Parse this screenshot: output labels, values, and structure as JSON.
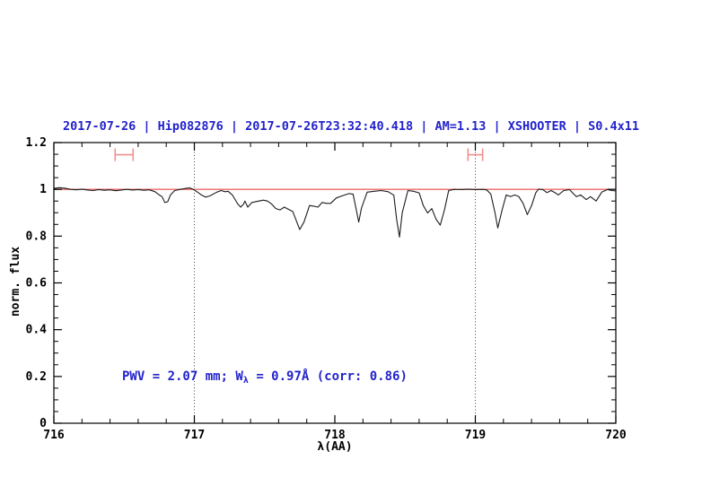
{
  "figure": {
    "background": "#ffffff"
  },
  "chart_data": {
    "type": "line",
    "title": "2017-07-26 | Hip082876 | 2017-07-26T23:32:40.418 | AM=1.13 | XSHOOTER | S0.4x11",
    "title_color": "#2222cc",
    "xlabel": "λ(AA)",
    "ylabel": "norm. flux",
    "xlim": [
      716,
      720
    ],
    "ylim": [
      0,
      1.2
    ],
    "grid": "off",
    "legend": "none",
    "x_ticks": [
      {
        "v": 716,
        "label": "716"
      },
      {
        "v": 717,
        "label": "717"
      },
      {
        "v": 718,
        "label": "718"
      },
      {
        "v": 719,
        "label": "719"
      },
      {
        "v": 720,
        "label": "720"
      }
    ],
    "x_minor_step": 0.2,
    "y_ticks": [
      {
        "v": 0,
        "label": "0"
      },
      {
        "v": 0.2,
        "label": "0.2"
      },
      {
        "v": 0.4,
        "label": "0.4"
      },
      {
        "v": 0.6,
        "label": "0.6"
      },
      {
        "v": 0.8,
        "label": "0.8"
      },
      {
        "v": 1,
        "label": "1"
      },
      {
        "v": 1.2,
        "label": "1.2"
      }
    ],
    "y_minor_step": 0.05,
    "dotted_guides_x": [
      717,
      719
    ],
    "continuum_line": {
      "y": 1.0,
      "color": "#ee6666"
    },
    "range_markers": [
      {
        "x_center": 716.5,
        "x_half_width": 0.064,
        "y": 1.148,
        "cap_half_height": 0.027,
        "color": "#f09090"
      },
      {
        "x_center": 719.0,
        "x_half_width": 0.052,
        "y": 1.148,
        "cap_half_height": 0.027,
        "color": "#f09090"
      }
    ],
    "annotation": {
      "pre": "PWV = 2.07 mm; W",
      "sub": "λ",
      "post": " = 0.97Å (corr: 0.86)",
      "color": "#2222cc"
    },
    "series": [
      {
        "name": "normalized telluric spectrum",
        "color": "#1c1c1c",
        "points": [
          [
            716.0,
            1.004
          ],
          [
            716.04,
            1.007
          ],
          [
            716.08,
            1.005
          ],
          [
            716.12,
            1.0
          ],
          [
            716.16,
            0.998
          ],
          [
            716.2,
            1.001
          ],
          [
            716.24,
            0.997
          ],
          [
            716.28,
            0.995
          ],
          [
            716.32,
            0.999
          ],
          [
            716.36,
            0.996
          ],
          [
            716.4,
            0.998
          ],
          [
            716.44,
            0.994
          ],
          [
            716.48,
            0.997
          ],
          [
            716.52,
            1.0
          ],
          [
            716.56,
            0.997
          ],
          [
            716.6,
            0.999
          ],
          [
            716.64,
            0.996
          ],
          [
            716.68,
            0.998
          ],
          [
            716.72,
            0.99
          ],
          [
            716.75,
            0.976
          ],
          [
            716.77,
            0.969
          ],
          [
            716.79,
            0.944
          ],
          [
            716.81,
            0.947
          ],
          [
            716.83,
            0.976
          ],
          [
            716.86,
            0.995
          ],
          [
            716.9,
            1.0
          ],
          [
            716.94,
            1.004
          ],
          [
            716.97,
            1.006
          ],
          [
            717.0,
            0.997
          ],
          [
            717.03,
            0.985
          ],
          [
            717.05,
            0.976
          ],
          [
            717.08,
            0.967
          ],
          [
            717.11,
            0.972
          ],
          [
            717.16,
            0.988
          ],
          [
            717.19,
            0.995
          ],
          [
            717.22,
            0.99
          ],
          [
            717.24,
            0.992
          ],
          [
            717.27,
            0.976
          ],
          [
            717.31,
            0.937
          ],
          [
            717.33,
            0.924
          ],
          [
            717.35,
            0.937
          ],
          [
            717.36,
            0.95
          ],
          [
            717.38,
            0.924
          ],
          [
            717.41,
            0.944
          ],
          [
            717.46,
            0.95
          ],
          [
            717.49,
            0.954
          ],
          [
            717.52,
            0.95
          ],
          [
            717.55,
            0.937
          ],
          [
            717.58,
            0.918
          ],
          [
            717.61,
            0.912
          ],
          [
            717.64,
            0.924
          ],
          [
            717.66,
            0.918
          ],
          [
            717.7,
            0.905
          ],
          [
            717.73,
            0.86
          ],
          [
            717.75,
            0.828
          ],
          [
            717.78,
            0.86
          ],
          [
            717.82,
            0.931
          ],
          [
            717.85,
            0.928
          ],
          [
            717.88,
            0.924
          ],
          [
            717.91,
            0.944
          ],
          [
            717.94,
            0.94
          ],
          [
            717.97,
            0.94
          ],
          [
            718.01,
            0.963
          ],
          [
            718.05,
            0.972
          ],
          [
            718.1,
            0.982
          ],
          [
            718.13,
            0.98
          ],
          [
            718.15,
            0.92
          ],
          [
            718.17,
            0.86
          ],
          [
            718.19,
            0.92
          ],
          [
            718.23,
            0.988
          ],
          [
            718.28,
            0.992
          ],
          [
            718.33,
            0.995
          ],
          [
            718.38,
            0.99
          ],
          [
            718.42,
            0.975
          ],
          [
            718.44,
            0.87
          ],
          [
            718.46,
            0.796
          ],
          [
            718.48,
            0.9
          ],
          [
            718.52,
            0.995
          ],
          [
            718.56,
            0.992
          ],
          [
            718.6,
            0.985
          ],
          [
            718.63,
            0.93
          ],
          [
            718.66,
            0.899
          ],
          [
            718.69,
            0.918
          ],
          [
            718.72,
            0.873
          ],
          [
            718.75,
            0.847
          ],
          [
            718.78,
            0.912
          ],
          [
            718.81,
            0.995
          ],
          [
            718.85,
            1.0
          ],
          [
            718.9,
            0.999
          ],
          [
            718.95,
            1.001
          ],
          [
            719.0,
            0.999
          ],
          [
            719.05,
            1.0
          ],
          [
            719.08,
            0.998
          ],
          [
            719.11,
            0.98
          ],
          [
            719.14,
            0.9
          ],
          [
            719.16,
            0.835
          ],
          [
            719.19,
            0.91
          ],
          [
            719.22,
            0.976
          ],
          [
            719.25,
            0.969
          ],
          [
            719.28,
            0.976
          ],
          [
            719.31,
            0.969
          ],
          [
            719.34,
            0.94
          ],
          [
            719.37,
            0.892
          ],
          [
            719.4,
            0.93
          ],
          [
            719.43,
            0.985
          ],
          [
            719.45,
            1.001
          ],
          [
            719.48,
            0.999
          ],
          [
            719.51,
            0.986
          ],
          [
            719.54,
            0.995
          ],
          [
            719.57,
            0.985
          ],
          [
            719.59,
            0.976
          ],
          [
            719.63,
            0.995
          ],
          [
            719.67,
            0.999
          ],
          [
            719.7,
            0.98
          ],
          [
            719.72,
            0.969
          ],
          [
            719.75,
            0.976
          ],
          [
            719.79,
            0.956
          ],
          [
            719.82,
            0.969
          ],
          [
            719.86,
            0.95
          ],
          [
            719.9,
            0.988
          ],
          [
            719.94,
            0.999
          ],
          [
            719.97,
            0.995
          ],
          [
            720.0,
            0.993
          ]
        ]
      }
    ]
  }
}
